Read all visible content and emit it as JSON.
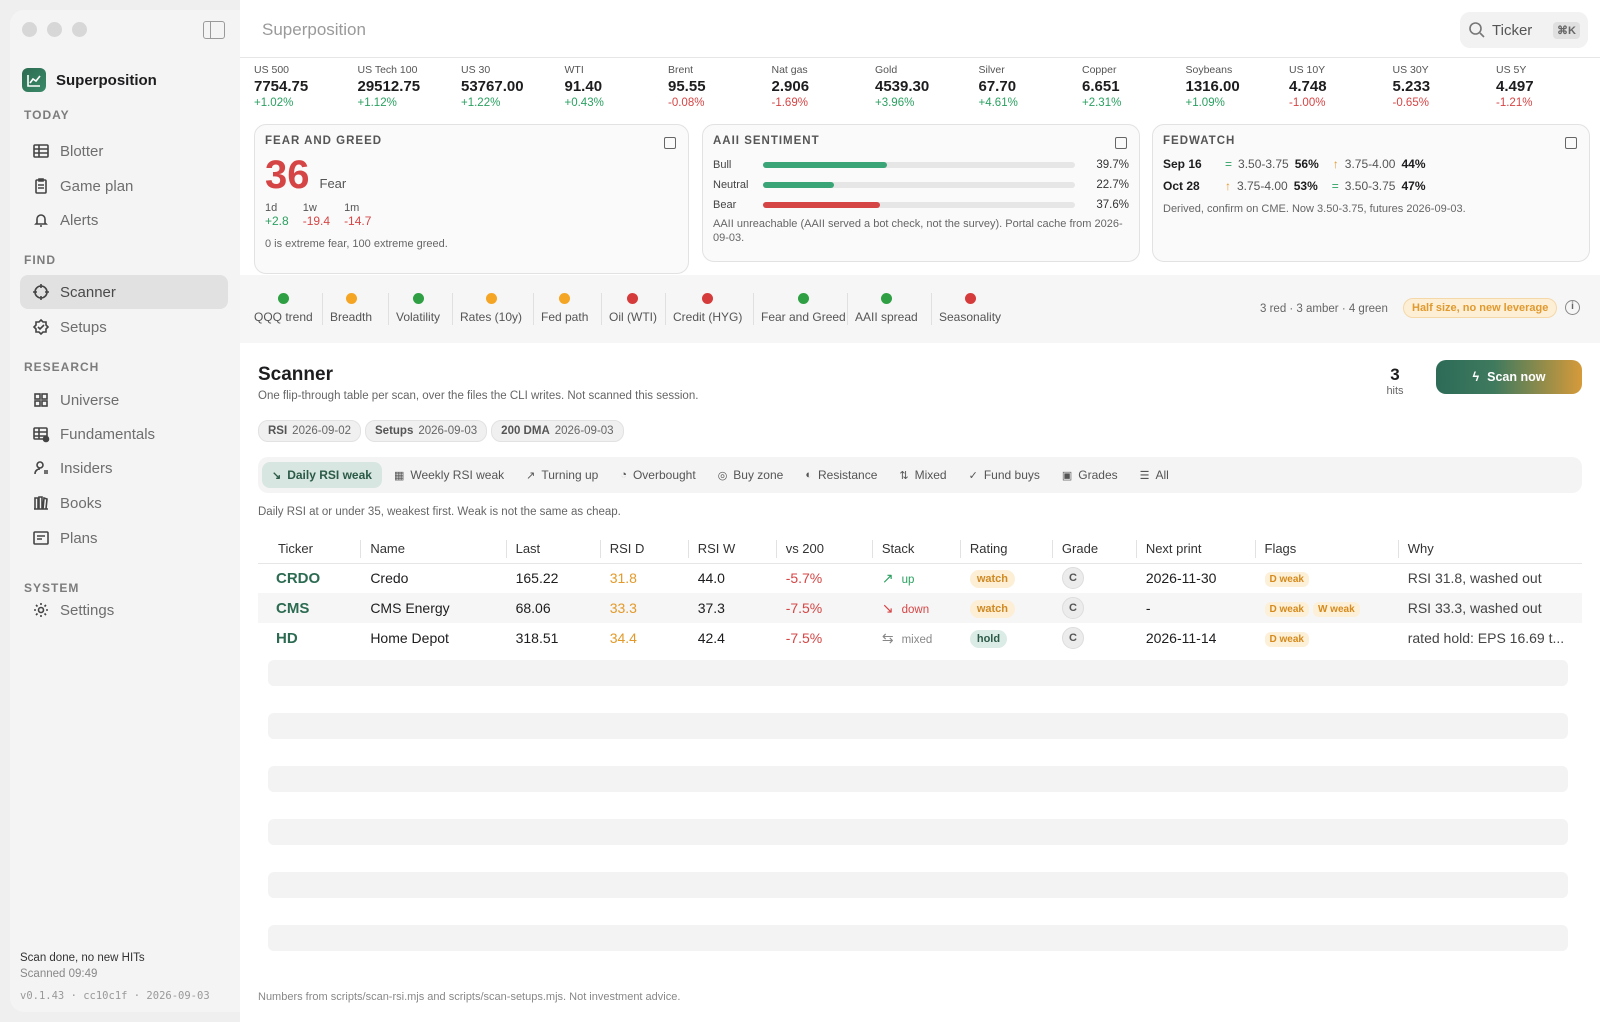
{
  "app": {
    "title": "Superposition",
    "search_label": "Ticker",
    "search_shortcut": "⌘K"
  },
  "sidebar": {
    "brand": "Superposition",
    "sections": {
      "today": "TODAY",
      "find": "FIND",
      "research": "RESEARCH",
      "system": "SYSTEM"
    },
    "items": {
      "blotter": "Blotter",
      "game_plan": "Game plan",
      "alerts": "Alerts",
      "scanner": "Scanner",
      "setups": "Setups",
      "universe": "Universe",
      "fundamentals": "Fundamentals",
      "insiders": "Insiders",
      "books": "Books",
      "plans": "Plans",
      "settings": "Settings"
    },
    "status": {
      "line1": "Scan done, no new HITs",
      "line2": "Scanned 09:49",
      "version": "v0.1.43 · cc10c1f · 2026-09-03"
    }
  },
  "tickers": [
    {
      "name": "US 500",
      "value": "7754.75",
      "change": "+1.02%",
      "dir": "up"
    },
    {
      "name": "US Tech 100",
      "value": "29512.75",
      "change": "+1.12%",
      "dir": "up"
    },
    {
      "name": "US 30",
      "value": "53767.00",
      "change": "+1.22%",
      "dir": "up"
    },
    {
      "name": "WTI",
      "value": "91.40",
      "change": "+0.43%",
      "dir": "up"
    },
    {
      "name": "Brent",
      "value": "95.55",
      "change": "-0.08%",
      "dir": "dn"
    },
    {
      "name": "Nat gas",
      "value": "2.906",
      "change": "-1.69%",
      "dir": "dn"
    },
    {
      "name": "Gold",
      "value": "4539.30",
      "change": "+3.96%",
      "dir": "up"
    },
    {
      "name": "Silver",
      "value": "67.70",
      "change": "+4.61%",
      "dir": "up"
    },
    {
      "name": "Copper",
      "value": "6.651",
      "change": "+2.31%",
      "dir": "up"
    },
    {
      "name": "Soybeans",
      "value": "1316.00",
      "change": "+1.09%",
      "dir": "up"
    },
    {
      "name": "US 10Y",
      "value": "4.748",
      "change": "-1.00%",
      "dir": "dn"
    },
    {
      "name": "US 30Y",
      "value": "5.233",
      "change": "-0.65%",
      "dir": "dn"
    },
    {
      "name": "US 5Y",
      "value": "4.497",
      "change": "-1.21%",
      "dir": "dn"
    }
  ],
  "fear_greed": {
    "title": "FEAR AND GREED",
    "value": "36",
    "label": "Fear",
    "p1_label": "1d",
    "p1_value": "+2.8",
    "p2_label": "1w",
    "p2_value": "-19.4",
    "p3_label": "1m",
    "p3_value": "-14.7",
    "note": "0 is extreme fear, 100 extreme greed."
  },
  "aaii": {
    "title": "AAII SENTIMENT",
    "bull_label": "Bull",
    "bull": "39.7%",
    "bull_frac": 0.397,
    "neutral_label": "Neutral",
    "neutral": "22.7%",
    "neutral_frac": 0.227,
    "bear_label": "Bear",
    "bear": "37.6%",
    "bear_frac": 0.376,
    "note": "AAII unreachable (AAII served a bot check, not the survey). Portal cache from 2026-09-03."
  },
  "fedwatch": {
    "title": "FEDWATCH",
    "r1_date": "Sep 16",
    "r1_a": "3.50-3.75",
    "r1_a_pct": "56%",
    "r1_b": "3.75-4.00",
    "r1_b_pct": "44%",
    "r2_date": "Oct 28",
    "r2_a": "3.75-4.00",
    "r2_a_pct": "53%",
    "r2_b": "3.50-3.75",
    "r2_b_pct": "47%",
    "note": "Derived, confirm on CME. Now 3.50-3.75, futures 2026-09-03."
  },
  "signals": [
    {
      "label": "QQQ trend",
      "color": "green"
    },
    {
      "label": "Breadth",
      "color": "amber"
    },
    {
      "label": "Volatility",
      "color": "green"
    },
    {
      "label": "Rates (10y)",
      "color": "amber"
    },
    {
      "label": "Fed path",
      "color": "amber"
    },
    {
      "label": "Oil (WTI)",
      "color": "red"
    },
    {
      "label": "Credit (HYG)",
      "color": "red"
    },
    {
      "label": "Fear and Greed",
      "color": "green"
    },
    {
      "label": "AAII spread",
      "color": "green"
    },
    {
      "label": "Seasonality",
      "color": "red"
    }
  ],
  "signal_summary": {
    "counts": "3 red · 3 amber · 4 green",
    "verdict": "Half size, no new leverage"
  },
  "scanner": {
    "title": "Scanner",
    "subtitle": "One flip-through table per scan, over the files the CLI writes. Not scanned this session.",
    "hits": "3",
    "hits_label": "hits",
    "scan_button": "Scan now",
    "chips": [
      {
        "k": "RSI",
        "v": "2026-09-02"
      },
      {
        "k": "Setups",
        "v": "2026-09-03"
      },
      {
        "k": "200 DMA",
        "v": "2026-09-03"
      }
    ],
    "tabs": [
      "Daily RSI weak",
      "Weekly RSI weak",
      "Turning up",
      "Overbought",
      "Buy zone",
      "Resistance",
      "Mixed",
      "Fund buys",
      "Grades",
      "All"
    ],
    "description": "Daily RSI at or under 35, weakest first. Weak is not the same as cheap.",
    "columns": [
      "Ticker",
      "Name",
      "Last",
      "RSI D",
      "RSI W",
      "vs 200",
      "Stack",
      "Rating",
      "Grade",
      "Next print",
      "Flags",
      "Why"
    ],
    "rows": [
      {
        "ticker": "CRDO",
        "name": "Credo",
        "last": "165.22",
        "rsid": "31.8",
        "rsiw": "44.0",
        "vs200": "-5.7%",
        "stack": "up",
        "rating": "watch",
        "grade": "C",
        "next": "2026-11-30",
        "flags": [
          "D weak"
        ],
        "why": "RSI 31.8, washed out"
      },
      {
        "ticker": "CMS",
        "name": "CMS Energy",
        "last": "68.06",
        "rsid": "33.3",
        "rsiw": "37.3",
        "vs200": "-7.5%",
        "stack": "down",
        "rating": "watch",
        "grade": "C",
        "next": "-",
        "flags": [
          "D weak",
          "W weak"
        ],
        "why": "RSI 33.3, washed out"
      },
      {
        "ticker": "HD",
        "name": "Home Depot",
        "last": "318.51",
        "rsid": "34.4",
        "rsiw": "42.4",
        "vs200": "-7.5%",
        "stack": "mixed",
        "rating": "hold",
        "grade": "C",
        "next": "2026-11-14",
        "flags": [
          "D weak"
        ],
        "why": "rated hold: EPS 16.69 t..."
      }
    ],
    "footer": "Numbers from scripts/scan-rsi.mjs and scripts/scan-setups.mjs. Not investment advice."
  }
}
